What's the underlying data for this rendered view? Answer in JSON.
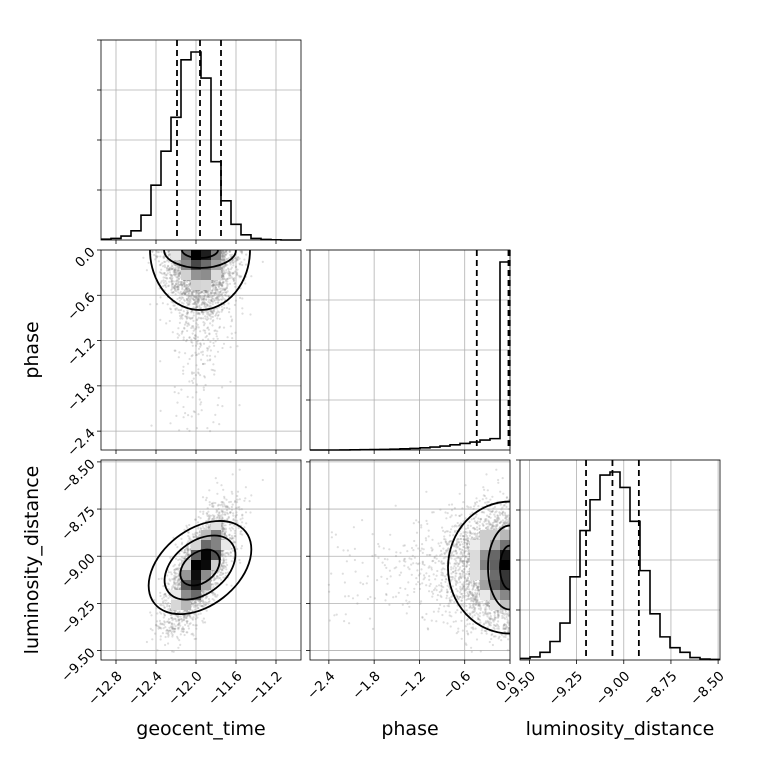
{
  "chart_data": {
    "type": "corner",
    "parameters": [
      "geocent_time",
      "phase",
      "luminosity_distance"
    ],
    "axes": {
      "geocent_time": {
        "label": "geocent_time",
        "range": [
          -12.95,
          -10.95
        ],
        "ticks": [
          -12.8,
          -12.4,
          -12.0,
          -11.6,
          -11.2
        ],
        "tick_labels": [
          "−12.8",
          "−12.4",
          "−12.0",
          "−11.6",
          "−11.2"
        ],
        "quantiles": [
          -12.19,
          -11.96,
          -11.75
        ]
      },
      "phase": {
        "label": "phase",
        "range": [
          -2.65,
          0.0
        ],
        "ticks": [
          -2.4,
          -1.8,
          -1.2,
          -0.6,
          0.0
        ],
        "tick_labels": [
          "−2.4",
          "−1.8",
          "−1.2",
          "−0.6",
          "0.0"
        ],
        "quantiles": [
          -0.44,
          -0.02,
          -0.003
        ]
      },
      "luminosity_distance": {
        "label": "luminosity_distance",
        "range": [
          -9.55,
          -8.49
        ],
        "ticks": [
          -9.5,
          -9.25,
          -9.0,
          -8.75,
          -8.5
        ],
        "tick_labels": [
          "−9.50",
          "−9.25",
          "−9.00",
          "−8.75",
          "−8.50"
        ],
        "quantiles": [
          -9.2,
          -9.06,
          -8.92
        ]
      }
    },
    "histograms": {
      "geocent_time": {
        "bin_edges": [
          -12.95,
          -12.85,
          -12.75,
          -12.65,
          -12.55,
          -12.45,
          -12.35,
          -12.25,
          -12.15,
          -12.05,
          -11.95,
          -11.85,
          -11.75,
          -11.65,
          -11.55,
          -11.45,
          -11.35,
          -11.25,
          -11.15,
          -11.05,
          -10.95
        ],
        "counts": [
          3,
          6,
          15,
          35,
          95,
          210,
          340,
          470,
          690,
          720,
          620,
          300,
          150,
          60,
          20,
          6,
          2,
          1,
          0,
          0
        ]
      },
      "phase": {
        "bin_edges": [
          -2.65,
          -2.5175,
          -2.385,
          -2.2525,
          -2.12,
          -1.9875,
          -1.855,
          -1.7225,
          -1.59,
          -1.4575,
          -1.325,
          -1.1925,
          -1.06,
          -0.9275,
          -0.795,
          -0.6625,
          -0.53,
          -0.3975,
          -0.265,
          -0.1325,
          0.0
        ],
        "counts": [
          0,
          0,
          0,
          1,
          2,
          3,
          4,
          6,
          8,
          12,
          16,
          22,
          30,
          40,
          52,
          66,
          80,
          100,
          115,
          1900
        ]
      },
      "luminosity_distance": {
        "bin_edges": [
          -9.55,
          -9.497,
          -9.444,
          -9.391,
          -9.338,
          -9.285,
          -9.232,
          -9.179,
          -9.126,
          -9.073,
          -9.02,
          -8.967,
          -8.914,
          -8.861,
          -8.808,
          -8.755,
          -8.702,
          -8.649,
          -8.596,
          -8.543,
          -8.49
        ],
        "counts": [
          5,
          10,
          25,
          60,
          120,
          270,
          420,
          520,
          600,
          610,
          560,
          450,
          290,
          150,
          75,
          40,
          25,
          8,
          3,
          2
        ]
      }
    },
    "samples": {
      "geocent_time": {
        "mean": -11.96,
        "std": 0.16
      },
      "phase": {
        "mode": 0.0,
        "scale": 0.35
      },
      "luminosity_distance": {
        "mean": -9.06,
        "std": 0.15
      },
      "correlation_geocent_time_luminosity_distance": 0.7
    }
  }
}
